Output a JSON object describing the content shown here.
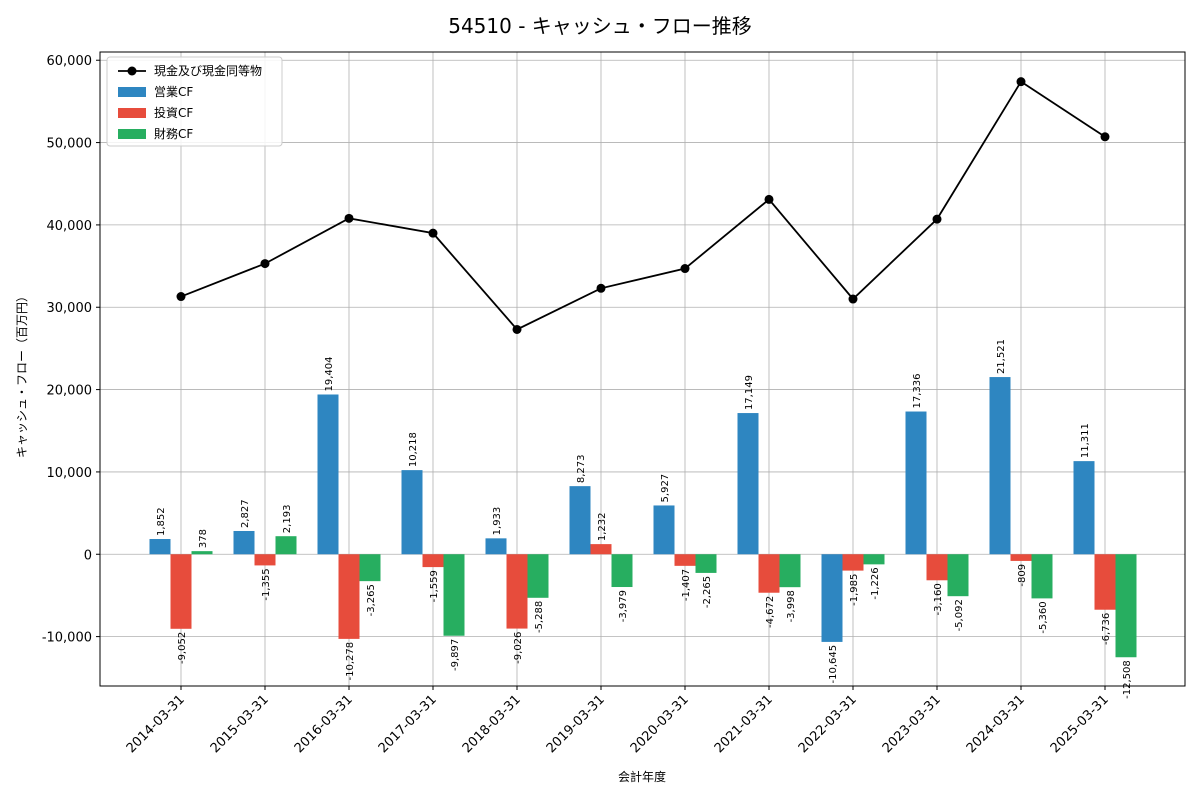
{
  "chart_data": {
    "type": "bar",
    "title": "54510 - キャッシュ・フロー推移",
    "xlabel": "会計年度",
    "ylabel": "キャッシュ・フロー（百万円）",
    "ylim": [
      -16000,
      61000
    ],
    "yticks": [
      -10000,
      0,
      10000,
      20000,
      30000,
      40000,
      50000,
      60000
    ],
    "ytick_labels": [
      "-10,000",
      "0",
      "10,000",
      "20,000",
      "30,000",
      "40,000",
      "50,000",
      "60,000"
    ],
    "grid": true,
    "legend_position": "top-left",
    "categories": [
      "2014-03-31",
      "2015-03-31",
      "2016-03-31",
      "2017-03-31",
      "2018-03-31",
      "2019-03-31",
      "2020-03-31",
      "2021-03-31",
      "2022-03-31",
      "2023-03-31",
      "2024-03-31",
      "2025-03-31"
    ],
    "line_series": {
      "name": "現金及び現金同等物",
      "color": "#000000",
      "values": [
        31300,
        35300,
        40800,
        39000,
        27300,
        32300,
        34700,
        43100,
        31000,
        40700,
        57400,
        50700
      ]
    },
    "series": [
      {
        "name": "営業CF",
        "color": "#2e86c1",
        "values": [
          1852,
          2827,
          19404,
          10218,
          1933,
          8273,
          5927,
          17149,
          -10645,
          17336,
          21521,
          11311
        ],
        "labels": [
          "1,852",
          "2,827",
          "19,404",
          "10,218",
          "1,933",
          "8,273",
          "5,927",
          "17,149",
          "-10,645",
          "17,336",
          "21,521",
          "11,311"
        ]
      },
      {
        "name": "投資CF",
        "color": "#e74c3c",
        "values": [
          -9052,
          -1355,
          -10278,
          -1559,
          -9026,
          1232,
          -1407,
          -4672,
          -1985,
          -3160,
          -809,
          -6736
        ],
        "labels": [
          "-9,052",
          "-1,355",
          "-10,278",
          "-1,559",
          "-9,026",
          "1,232",
          "-1,407",
          "-4,672",
          "-1,985",
          "-3,160",
          "-809",
          "-6,736"
        ]
      },
      {
        "name": "財務CF",
        "color": "#27ae60",
        "values": [
          378,
          2193,
          -3265,
          -9897,
          -5288,
          -3979,
          -2265,
          -3998,
          -1226,
          -5092,
          -5360,
          -12508
        ],
        "labels": [
          "378",
          "2,193",
          "-3,265",
          "-9,897",
          "-5,288",
          "-3,979",
          "-2,265",
          "-3,998",
          "-1,226",
          "-5,092",
          "-5,360",
          "-12,508"
        ]
      }
    ]
  }
}
